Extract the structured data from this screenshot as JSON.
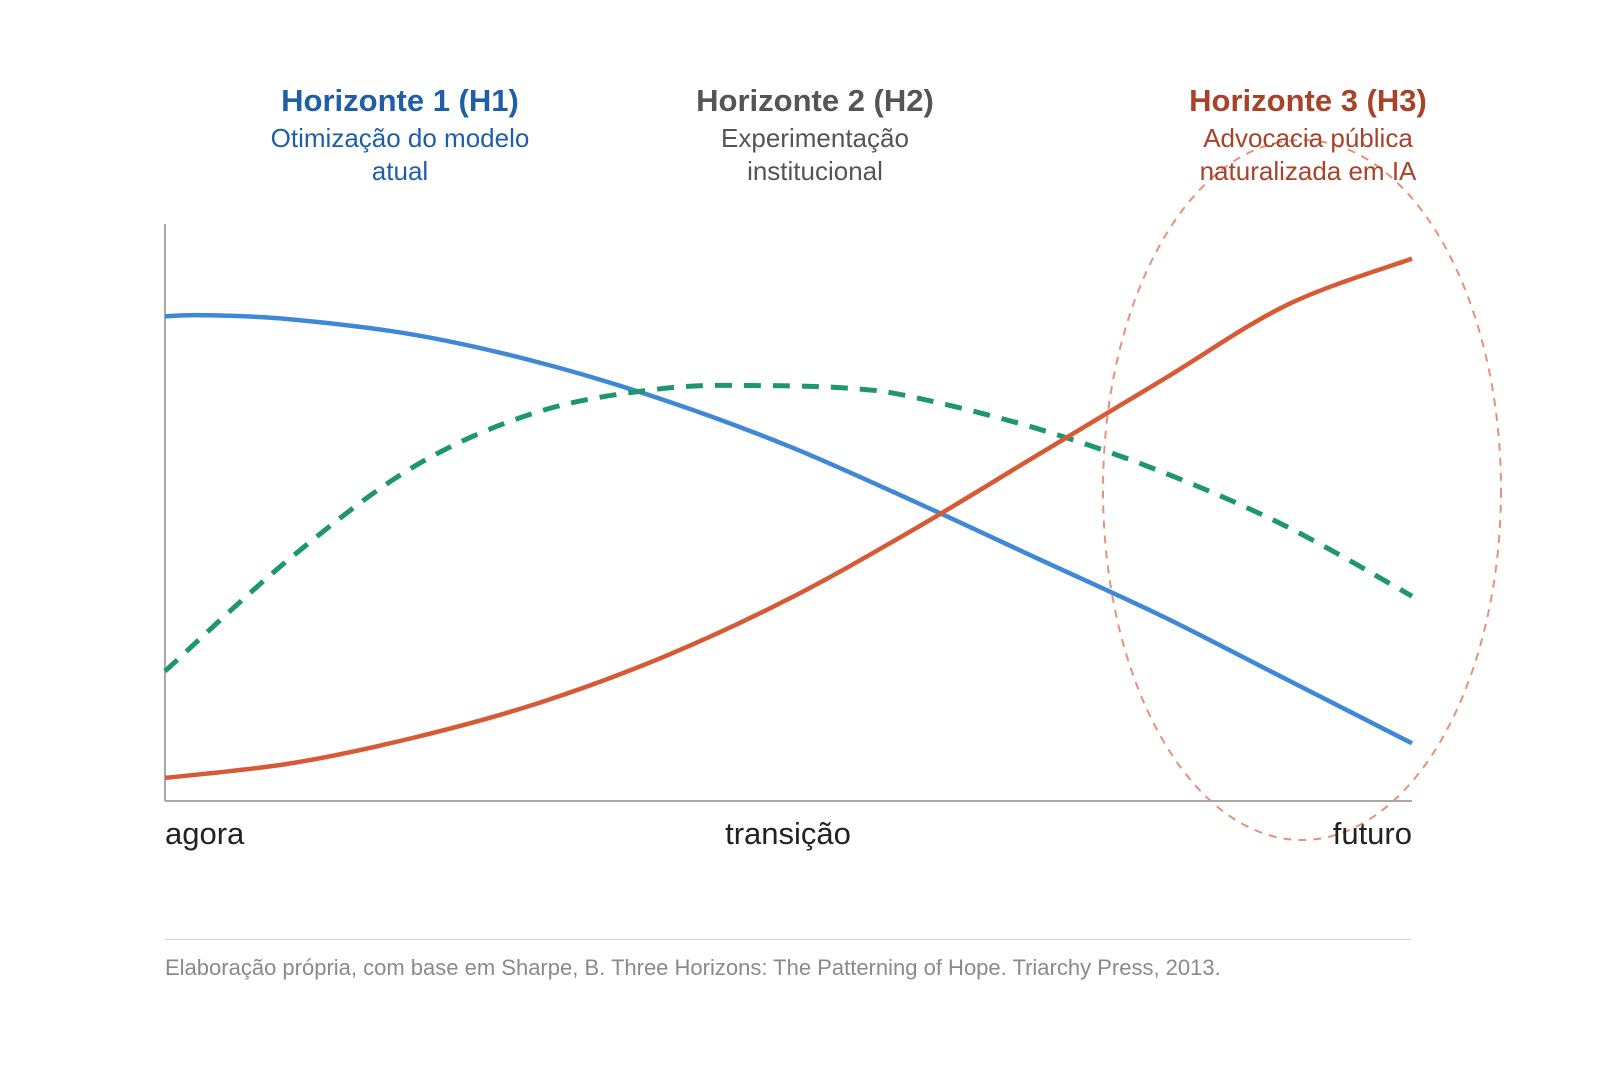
{
  "horizons": [
    {
      "id": "h1",
      "title": "Horizonte 1 (H1)",
      "subtitle_line1": "Otimização do modelo",
      "subtitle_line2": "atual",
      "color": "#1f5fa8"
    },
    {
      "id": "h2",
      "title": "Horizonte 2 (H2)",
      "subtitle_line1": "Experimentação",
      "subtitle_line2": "institucional",
      "color": "#555555"
    },
    {
      "id": "h3",
      "title": "Horizonte 3 (H3)",
      "subtitle_line1": "Advocacia pública",
      "subtitle_line2": "naturalizada em IA",
      "color": "#a8432a"
    }
  ],
  "source_note": "Elaboração própria, com base em Sharpe, B. Three Horizons: The Patterning of Hope. Triarchy Press, 2013.",
  "chart_data": {
    "type": "line",
    "title": "",
    "xlabel": "",
    "ylabel": "",
    "x_tick_labels": [
      "agora",
      "transição",
      "futuro"
    ],
    "xlim": [
      0,
      1
    ],
    "ylim": [
      0,
      1
    ],
    "grid": false,
    "legend": "none",
    "series": [
      {
        "id": "h1",
        "style": "solid",
        "color": "#3f88d8",
        "x": [
          0,
          0.03,
          0.1,
          0.2,
          0.3,
          0.4,
          0.5,
          0.6,
          0.7,
          0.8,
          0.9,
          1.0
        ],
        "y": [
          0.84,
          0.842,
          0.835,
          0.808,
          0.76,
          0.695,
          0.615,
          0.52,
          0.42,
          0.32,
          0.21,
          0.1
        ]
      },
      {
        "id": "h2",
        "style": "dashed",
        "color": "#1e9670",
        "x": [
          0,
          0.1,
          0.2,
          0.3,
          0.4,
          0.48,
          0.55,
          0.6,
          0.7,
          0.8,
          0.9,
          1.0
        ],
        "y": [
          0.225,
          0.42,
          0.58,
          0.675,
          0.715,
          0.72,
          0.715,
          0.7,
          0.645,
          0.57,
          0.475,
          0.355
        ]
      },
      {
        "id": "h3",
        "style": "solid",
        "color": "#d65a35",
        "x": [
          0,
          0.1,
          0.2,
          0.3,
          0.4,
          0.5,
          0.6,
          0.7,
          0.8,
          0.9,
          1.0
        ],
        "y": [
          0.04,
          0.065,
          0.11,
          0.17,
          0.25,
          0.35,
          0.47,
          0.6,
          0.73,
          0.86,
          0.94
        ]
      }
    ],
    "annotation": {
      "type": "dashed-ellipse",
      "color": "#e8917a",
      "encloses": "h3"
    }
  }
}
